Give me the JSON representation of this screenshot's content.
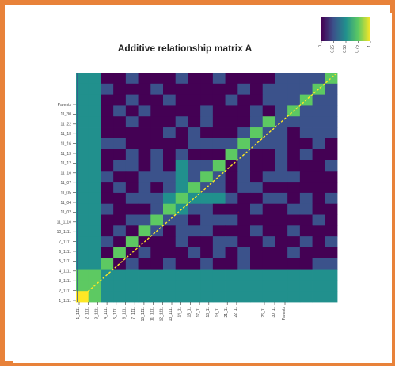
{
  "chart_data": {
    "type": "heatmap",
    "title": "Additive relationship matrix A",
    "xlabel": "",
    "ylabel": "",
    "colorbar": {
      "colors": [
        "#440154",
        "#3b528b",
        "#21908d",
        "#5dc962",
        "#fde725"
      ],
      "ticks": [
        "0",
        "0.25",
        "0.50",
        "0.75",
        "1"
      ],
      "range": [
        0,
        1
      ]
    },
    "x_tick_labels": [
      "1_1111",
      "2_1111",
      "3_1111",
      "4_1111",
      "5_1111",
      "6_1111",
      "7_1111",
      "10_1111",
      "11_1111",
      "12_1111",
      "13_1111",
      "14_11",
      "15_11",
      "17_11",
      "18_11",
      "19_11",
      "21_11",
      "22_11",
      "26_11",
      "30_11",
      "Parents"
    ],
    "y_tick_labels": [
      "Parents",
      "11_30",
      "11_22",
      "11_18",
      "11_16",
      "11_13",
      "11_12",
      "11_10",
      "11_07",
      "11_05",
      "11_04",
      "11_02",
      "11_1110",
      "10_1111",
      "7_1111",
      "6_1111",
      "5_1111",
      "4_1111",
      "3_1111",
      "2_1111",
      "1_1111"
    ],
    "cells": [
      [
        2,
        2,
        0,
        0,
        1,
        0,
        0,
        0,
        1,
        0,
        0,
        1,
        0,
        0,
        0,
        0,
        1,
        1,
        1,
        1,
        3
      ],
      [
        2,
        2,
        1,
        0,
        0,
        0,
        1,
        0,
        0,
        0,
        0,
        0,
        0,
        1,
        0,
        1,
        1,
        1,
        1,
        3,
        1
      ],
      [
        2,
        2,
        0,
        0,
        1,
        0,
        0,
        1,
        0,
        0,
        0,
        0,
        1,
        0,
        0,
        1,
        1,
        1,
        3,
        1,
        1
      ],
      [
        2,
        2,
        0,
        1,
        0,
        1,
        0,
        0,
        0,
        0,
        1,
        0,
        0,
        0,
        1,
        0,
        1,
        3,
        1,
        1,
        1
      ],
      [
        2,
        2,
        0,
        0,
        1,
        0,
        0,
        0,
        1,
        0,
        1,
        0,
        0,
        0,
        1,
        3,
        1,
        1,
        1,
        1,
        1
      ],
      [
        2,
        2,
        0,
        0,
        0,
        0,
        0,
        1,
        0,
        1,
        0,
        0,
        0,
        1,
        3,
        1,
        1,
        0,
        1,
        1,
        1
      ],
      [
        2,
        2,
        1,
        1,
        0,
        0,
        0,
        0,
        0,
        1,
        1,
        1,
        1,
        3,
        1,
        1,
        1,
        0,
        0,
        1,
        0
      ],
      [
        2,
        2,
        0,
        0,
        1,
        0,
        1,
        0,
        1,
        0,
        0,
        0,
        3,
        1,
        0,
        0,
        1,
        0,
        1,
        0,
        0
      ],
      [
        2,
        2,
        0,
        1,
        1,
        0,
        1,
        0,
        2,
        1,
        1,
        3,
        0,
        1,
        0,
        0,
        1,
        0,
        0,
        0,
        1
      ],
      [
        2,
        2,
        1,
        0,
        0,
        1,
        1,
        1,
        2,
        1,
        3,
        1,
        0,
        1,
        0,
        1,
        1,
        1,
        0,
        0,
        0
      ],
      [
        2,
        2,
        0,
        1,
        0,
        1,
        0,
        1,
        2,
        3,
        1,
        1,
        0,
        1,
        1,
        0,
        0,
        0,
        0,
        0,
        0
      ],
      [
        2,
        2,
        0,
        0,
        1,
        1,
        1,
        2,
        3,
        2,
        2,
        2,
        1,
        0,
        0,
        1,
        1,
        0,
        1,
        0,
        1
      ],
      [
        2,
        2,
        1,
        0,
        0,
        0,
        1,
        3,
        2,
        1,
        1,
        0,
        0,
        0,
        1,
        0,
        0,
        1,
        1,
        0,
        0
      ],
      [
        2,
        2,
        0,
        0,
        1,
        1,
        3,
        1,
        1,
        0,
        1,
        1,
        1,
        0,
        0,
        0,
        0,
        0,
        0,
        1,
        0
      ],
      [
        2,
        2,
        0,
        1,
        0,
        3,
        1,
        0,
        1,
        1,
        1,
        0,
        0,
        0,
        1,
        0,
        0,
        1,
        0,
        0,
        0
      ],
      [
        2,
        2,
        1,
        0,
        3,
        0,
        0,
        0,
        1,
        0,
        0,
        1,
        1,
        0,
        0,
        1,
        0,
        0,
        1,
        0,
        1
      ],
      [
        2,
        2,
        0,
        3,
        0,
        1,
        0,
        0,
        0,
        1,
        0,
        1,
        0,
        1,
        0,
        0,
        0,
        1,
        0,
        0,
        0
      ],
      [
        2,
        2,
        3,
        0,
        1,
        0,
        0,
        1,
        0,
        0,
        1,
        0,
        0,
        1,
        0,
        0,
        0,
        0,
        0,
        1,
        1
      ],
      [
        3,
        3,
        2,
        2,
        2,
        2,
        2,
        2,
        2,
        2,
        2,
        2,
        2,
        2,
        2,
        2,
        2,
        2,
        2,
        2,
        2
      ],
      [
        3,
        3,
        2,
        2,
        2,
        2,
        2,
        2,
        2,
        2,
        2,
        2,
        2,
        2,
        2,
        2,
        2,
        2,
        2,
        2,
        2
      ],
      [
        4,
        3,
        2,
        2,
        2,
        2,
        2,
        2,
        2,
        2,
        2,
        2,
        2,
        2,
        2,
        2,
        2,
        2,
        2,
        2,
        2
      ]
    ],
    "grid": false,
    "legend_position": "top-right"
  }
}
